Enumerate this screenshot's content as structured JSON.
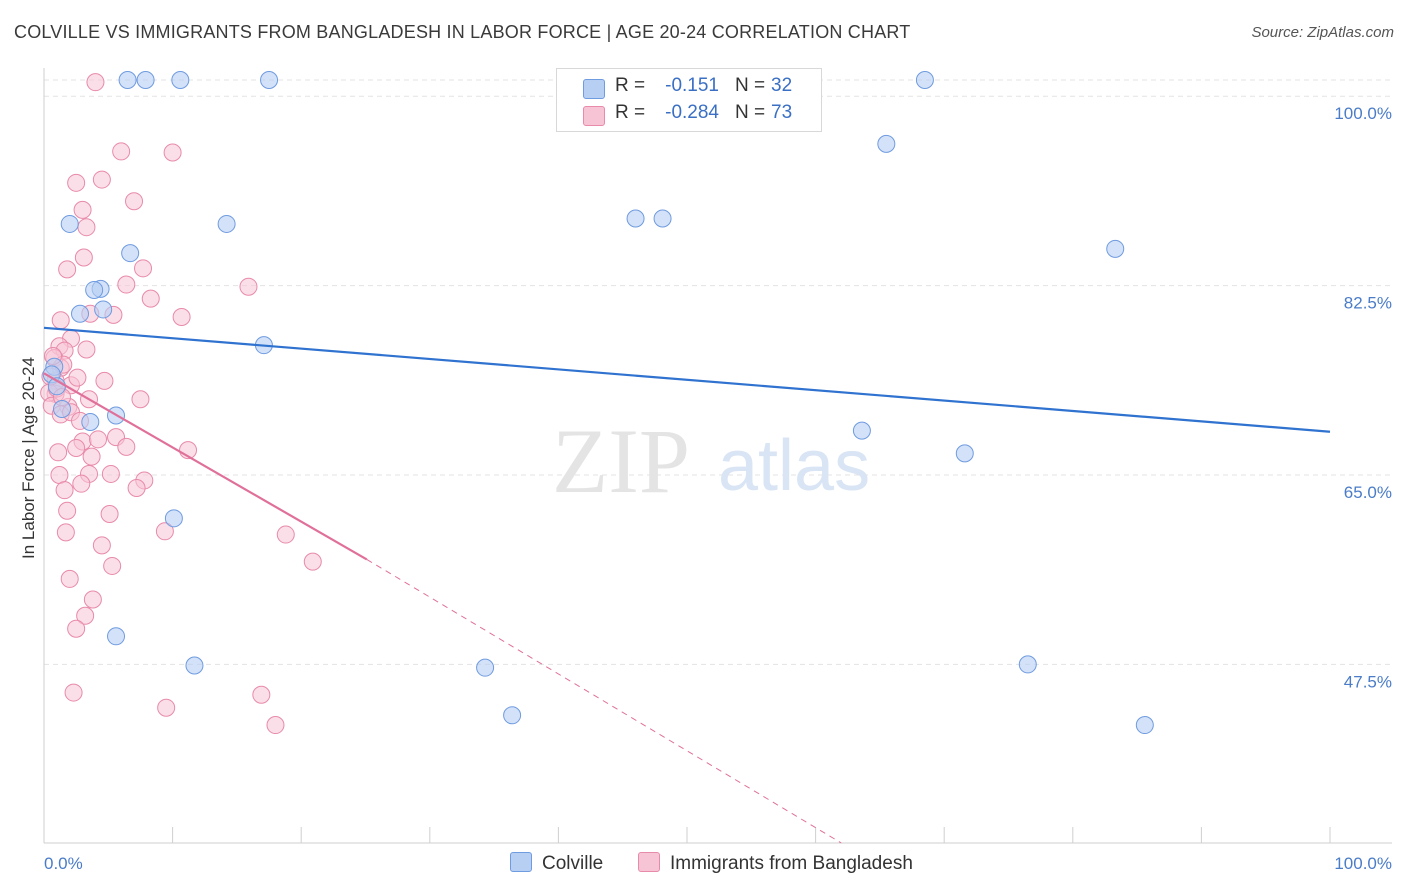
{
  "title": "COLVILLE VS IMMIGRANTS FROM BANGLADESH IN LABOR FORCE | AGE 20-24 CORRELATION CHART",
  "source": "Source: ZipAtlas.com",
  "watermark": {
    "zip": "ZIP",
    "atlas": "atlas"
  },
  "legend": {
    "colville": {
      "r_label": "R =",
      "r_value": "-0.151",
      "n_label": "N =",
      "n_value": "32"
    },
    "bangladesh": {
      "r_label": "R =",
      "r_value": "-0.284",
      "n_label": "N =",
      "n_value": "73"
    }
  },
  "bottom_legend": {
    "colville": "Colville",
    "bangladesh": "Immigrants from Bangladesh"
  },
  "colors": {
    "blue_fill": "#b6cff3",
    "blue_stroke": "#6f9be0",
    "blue_line": "#2f72cf",
    "pink_fill": "#f7c4d5",
    "pink_stroke": "#e88aaa",
    "pink_line": "#e0709a",
    "grid": "#e3e3e3",
    "axis_text": "#4a7cc8"
  },
  "chart_data": {
    "type": "scatter",
    "title": "COLVILLE VS IMMIGRANTS FROM BANGLADESH IN LABOR FORCE | AGE 20-24 CORRELATION CHART",
    "xlabel": "",
    "ylabel": "In Labor Force | Age 20-24",
    "xlim": [
      0,
      100
    ],
    "ylim": [
      31.0,
      101.5
    ],
    "x_tick_labels": [
      "0.0%",
      "100.0%"
    ],
    "y_ticks": [
      47.5,
      65.0,
      82.5,
      100.0
    ],
    "y_tick_labels": [
      "47.5%",
      "65.0%",
      "82.5%",
      "100.0%"
    ],
    "series": [
      {
        "name": "Colville",
        "r": -0.151,
        "n": 32,
        "trend": {
          "x": [
            0,
            100
          ],
          "y": [
            78.6,
            69.0
          ],
          "dashed_to": null
        },
        "points": [
          [
            6.5,
            101.5
          ],
          [
            7.9,
            101.5
          ],
          [
            10.6,
            101.5
          ],
          [
            17.5,
            101.5
          ],
          [
            68.5,
            101.5
          ],
          [
            65.5,
            95.6
          ],
          [
            2.0,
            88.2
          ],
          [
            14.2,
            88.2
          ],
          [
            46.0,
            88.7
          ],
          [
            48.1,
            88.7
          ],
          [
            83.3,
            85.9
          ],
          [
            6.7,
            85.5
          ],
          [
            4.4,
            82.2
          ],
          [
            3.9,
            82.1
          ],
          [
            4.6,
            80.3
          ],
          [
            2.8,
            79.9
          ],
          [
            17.1,
            77.0
          ],
          [
            0.8,
            75.0
          ],
          [
            1.4,
            71.1
          ],
          [
            3.6,
            69.9
          ],
          [
            5.6,
            70.5
          ],
          [
            63.6,
            69.1
          ],
          [
            71.6,
            67.0
          ],
          [
            10.1,
            61.0
          ],
          [
            5.6,
            50.1
          ],
          [
            11.7,
            47.4
          ],
          [
            34.3,
            47.2
          ],
          [
            76.5,
            47.5
          ],
          [
            36.4,
            42.8
          ],
          [
            85.6,
            41.9
          ],
          [
            0.6,
            74.3
          ],
          [
            1.0,
            73.2
          ]
        ]
      },
      {
        "name": "Immigrants from Bangladesh",
        "r": -0.284,
        "n": 73,
        "trend": {
          "x": [
            0,
            25.1
          ],
          "y": [
            74.4,
            57.2
          ],
          "dashed_to": {
            "x": 62.0,
            "y": 31.0
          }
        },
        "points": [
          [
            4.0,
            101.3
          ],
          [
            6.0,
            94.9
          ],
          [
            10.0,
            94.8
          ],
          [
            2.5,
            92.0
          ],
          [
            4.5,
            92.3
          ],
          [
            7.0,
            90.3
          ],
          [
            3.0,
            89.5
          ],
          [
            3.3,
            87.9
          ],
          [
            3.1,
            85.1
          ],
          [
            1.8,
            84.0
          ],
          [
            7.7,
            84.1
          ],
          [
            6.4,
            82.6
          ],
          [
            15.9,
            82.4
          ],
          [
            8.3,
            81.3
          ],
          [
            10.7,
            79.6
          ],
          [
            1.3,
            79.3
          ],
          [
            3.6,
            79.9
          ],
          [
            5.4,
            79.8
          ],
          [
            2.1,
            77.6
          ],
          [
            1.2,
            76.9
          ],
          [
            1.6,
            76.5
          ],
          [
            3.3,
            76.6
          ],
          [
            1.3,
            74.9
          ],
          [
            0.9,
            73.7
          ],
          [
            2.1,
            73.3
          ],
          [
            4.7,
            73.7
          ],
          [
            0.9,
            72.5
          ],
          [
            0.4,
            72.6
          ],
          [
            1.9,
            71.3
          ],
          [
            3.5,
            72.0
          ],
          [
            7.5,
            72.0
          ],
          [
            0.6,
            71.4
          ],
          [
            1.3,
            70.6
          ],
          [
            2.1,
            70.8
          ],
          [
            2.8,
            70.0
          ],
          [
            3.0,
            68.1
          ],
          [
            5.6,
            68.5
          ],
          [
            1.1,
            67.1
          ],
          [
            2.5,
            67.5
          ],
          [
            3.7,
            66.7
          ],
          [
            6.4,
            67.6
          ],
          [
            11.2,
            67.3
          ],
          [
            5.2,
            65.1
          ],
          [
            1.2,
            65.0
          ],
          [
            3.5,
            65.1
          ],
          [
            7.8,
            64.5
          ],
          [
            2.9,
            64.2
          ],
          [
            7.2,
            63.8
          ],
          [
            1.6,
            63.6
          ],
          [
            1.8,
            61.7
          ],
          [
            5.1,
            61.4
          ],
          [
            1.7,
            59.7
          ],
          [
            9.4,
            59.8
          ],
          [
            4.5,
            58.5
          ],
          [
            5.3,
            56.6
          ],
          [
            18.8,
            59.5
          ],
          [
            20.9,
            57.0
          ],
          [
            2.0,
            55.4
          ],
          [
            3.2,
            52.0
          ],
          [
            3.8,
            53.5
          ],
          [
            2.5,
            50.8
          ],
          [
            2.3,
            44.9
          ],
          [
            9.5,
            43.5
          ],
          [
            16.9,
            44.7
          ],
          [
            18.0,
            41.9
          ],
          [
            0.8,
            75.8
          ],
          [
            1.5,
            75.2
          ],
          [
            0.7,
            76.0
          ],
          [
            2.6,
            74.0
          ],
          [
            1.0,
            73.0
          ],
          [
            0.5,
            74.1
          ],
          [
            1.4,
            72.2
          ],
          [
            4.2,
            68.3
          ]
        ]
      }
    ]
  }
}
